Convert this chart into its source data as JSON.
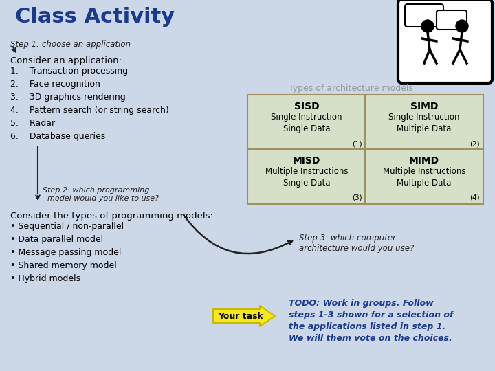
{
  "bg_color": "#ccd7e8",
  "title": "Class Activity",
  "title_color": "#1a3a8c",
  "title_fontsize": 22,
  "step1_label": "Step 1: choose an application",
  "consider_label": "Consider an application:",
  "app_list": [
    "1.    Transaction processing",
    "2.    Face recognition",
    "3.    3D graphics rendering",
    "4.    Pattern search (or string search)",
    "5.    Radar",
    "6.    Database queries"
  ],
  "arch_title": "Types of architecture models",
  "arch_title_color": "#999999",
  "table_bg": "#d6dfc8",
  "table_border": "#a09060",
  "cell_data": [
    {
      "label": "SISD",
      "sub": "Single Instruction\nSingle Data",
      "num": "(1)",
      "row": 0,
      "col": 0
    },
    {
      "label": "SIMD",
      "sub": "Single Instruction\nMultiple Data",
      "num": "(2)",
      "row": 0,
      "col": 1
    },
    {
      "label": "MISD",
      "sub": "Multiple Instructions\nSingle Data",
      "num": "(3)",
      "row": 1,
      "col": 0
    },
    {
      "label": "MIMD",
      "sub": "Multiple Instructions\nMultiple Data",
      "num": "(4)",
      "row": 1,
      "col": 1
    }
  ],
  "step2_text": "Step 2: which programming\n  model would you like to use?",
  "step3_text": "Step 3: which computer\narchitecture would you use?",
  "consider2_label": "Consider the types of programming models:",
  "prog_list": [
    "• Sequential / non-parallel",
    "• Data parallel model",
    "• Message passing model",
    "• Shared memory model",
    "• Hybrid models"
  ],
  "your_task_label": "Your task",
  "todo_text": "TODO: Work in groups. Follow\nsteps 1-3 shown for a selection of\nthe applications listed in step 1.\nWe will them vote on the choices.",
  "todo_color": "#1a3a8c",
  "arrow_color": "#222222",
  "your_task_color": "#f5e820",
  "your_task_border": "#c8b800"
}
